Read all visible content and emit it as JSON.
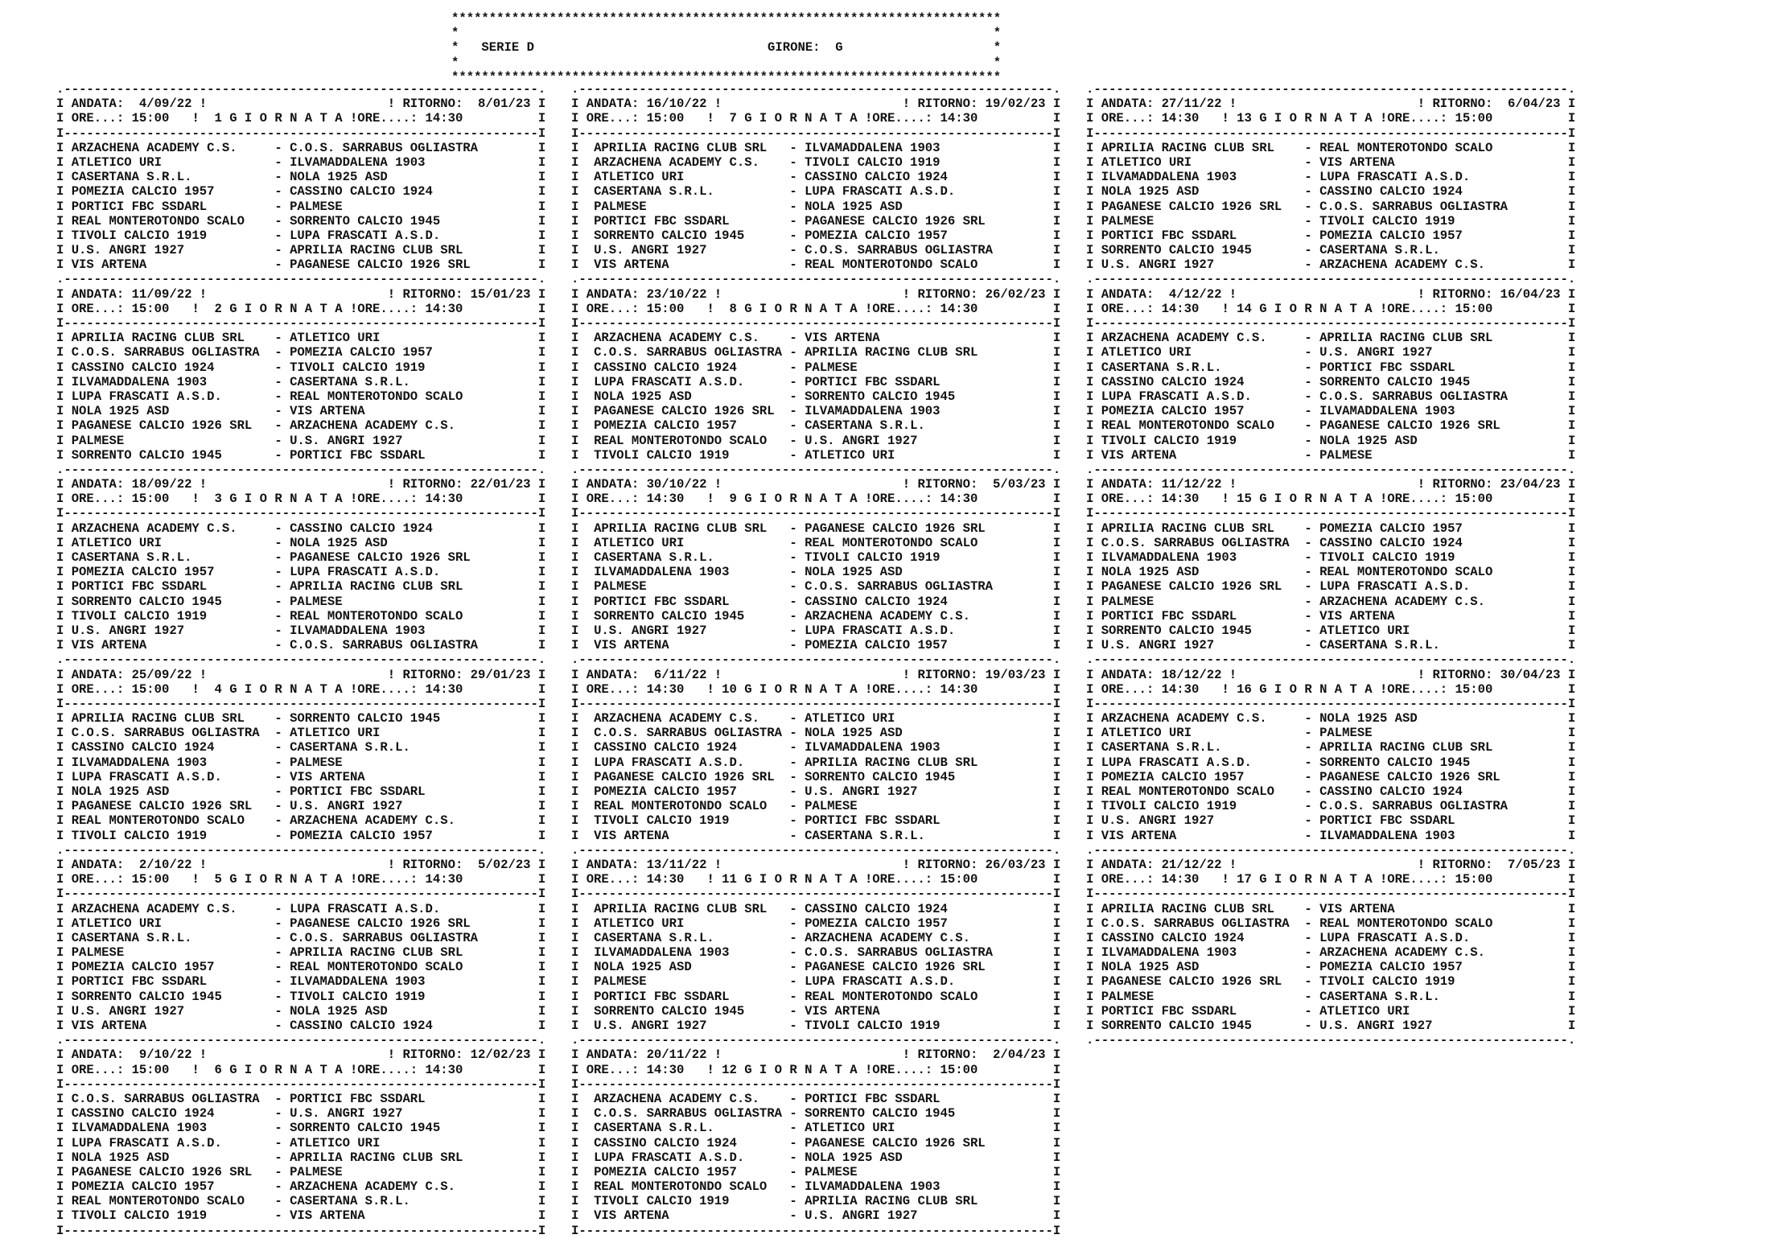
{
  "header": {
    "league": "SERIE D",
    "girone_label": "GIRONE:",
    "girone": "G"
  },
  "labels": {
    "andata": "ANDATA:",
    "ritorno": "RITORNO:",
    "ore_andata": "ORE...:",
    "ore_ritorno": "ORE....:",
    "giornata": "G I O R N A T A"
  },
  "rounds": [
    {
      "n": "1",
      "andata": "4/09/22",
      "ritorno": "8/01/23",
      "ore_andata": "15:00",
      "ore_ritorno": "14:30",
      "matches": [
        [
          "ARZACHENA ACADEMY C.S.",
          "C.O.S. SARRABUS OGLIASTRA"
        ],
        [
          "ATLETICO URI",
          "ILVAMADDALENA 1903"
        ],
        [
          "CASERTANA S.R.L.",
          "NOLA 1925 ASD"
        ],
        [
          "POMEZIA CALCIO 1957",
          "CASSINO CALCIO 1924"
        ],
        [
          "PORTICI FBC SSDARL",
          "PALMESE"
        ],
        [
          "REAL MONTEROTONDO SCALO",
          "SORRENTO CALCIO 1945"
        ],
        [
          "TIVOLI CALCIO 1919",
          "LUPA FRASCATI A.S.D."
        ],
        [
          "U.S. ANGRI 1927",
          "APRILIA RACING CLUB SRL"
        ],
        [
          "VIS ARTENA",
          "PAGANESE CALCIO 1926 SRL"
        ]
      ]
    },
    {
      "n": "2",
      "andata": "11/09/22",
      "ritorno": "15/01/23",
      "ore_andata": "15:00",
      "ore_ritorno": "14:30",
      "matches": [
        [
          "APRILIA RACING CLUB SRL",
          "ATLETICO URI"
        ],
        [
          "C.O.S. SARRABUS OGLIASTRA",
          "POMEZIA CALCIO 1957"
        ],
        [
          "CASSINO CALCIO 1924",
          "TIVOLI CALCIO 1919"
        ],
        [
          "ILVAMADDALENA 1903",
          "CASERTANA S.R.L."
        ],
        [
          "LUPA FRASCATI A.S.D.",
          "REAL MONTEROTONDO SCALO"
        ],
        [
          "NOLA 1925 ASD",
          "VIS ARTENA"
        ],
        [
          "PAGANESE CALCIO 1926 SRL",
          "ARZACHENA ACADEMY C.S."
        ],
        [
          "PALMESE",
          "U.S. ANGRI 1927"
        ],
        [
          "SORRENTO CALCIO 1945",
          "PORTICI FBC SSDARL"
        ]
      ]
    },
    {
      "n": "3",
      "andata": "18/09/22",
      "ritorno": "22/01/23",
      "ore_andata": "15:00",
      "ore_ritorno": "14:30",
      "matches": [
        [
          "ARZACHENA ACADEMY C.S.",
          "CASSINO CALCIO 1924"
        ],
        [
          "ATLETICO URI",
          "NOLA 1925 ASD"
        ],
        [
          "CASERTANA S.R.L.",
          "PAGANESE CALCIO 1926 SRL"
        ],
        [
          "POMEZIA CALCIO 1957",
          "LUPA FRASCATI A.S.D."
        ],
        [
          "PORTICI FBC SSDARL",
          "APRILIA RACING CLUB SRL"
        ],
        [
          "SORRENTO CALCIO 1945",
          "PALMESE"
        ],
        [
          "TIVOLI CALCIO 1919",
          "REAL MONTEROTONDO SCALO"
        ],
        [
          "U.S. ANGRI 1927",
          "ILVAMADDALENA 1903"
        ],
        [
          "VIS ARTENA",
          "C.O.S. SARRABUS OGLIASTRA"
        ]
      ]
    },
    {
      "n": "4",
      "andata": "25/09/22",
      "ritorno": "29/01/23",
      "ore_andata": "15:00",
      "ore_ritorno": "14:30",
      "matches": [
        [
          "APRILIA RACING CLUB SRL",
          "SORRENTO CALCIO 1945"
        ],
        [
          "C.O.S. SARRABUS OGLIASTRA",
          "ATLETICO URI"
        ],
        [
          "CASSINO CALCIO 1924",
          "CASERTANA S.R.L."
        ],
        [
          "ILVAMADDALENA 1903",
          "PALMESE"
        ],
        [
          "LUPA FRASCATI A.S.D.",
          "VIS ARTENA"
        ],
        [
          "NOLA 1925 ASD",
          "PORTICI FBC SSDARL"
        ],
        [
          "PAGANESE CALCIO 1926 SRL",
          "U.S. ANGRI 1927"
        ],
        [
          "REAL MONTEROTONDO SCALO",
          "ARZACHENA ACADEMY C.S."
        ],
        [
          "TIVOLI CALCIO 1919",
          "POMEZIA CALCIO 1957"
        ]
      ]
    },
    {
      "n": "5",
      "andata": "2/10/22",
      "ritorno": "5/02/23",
      "ore_andata": "15:00",
      "ore_ritorno": "14:30",
      "matches": [
        [
          "ARZACHENA ACADEMY C.S.",
          "LUPA FRASCATI A.S.D."
        ],
        [
          "ATLETICO URI",
          "PAGANESE CALCIO 1926 SRL"
        ],
        [
          "CASERTANA S.R.L.",
          "C.O.S. SARRABUS OGLIASTRA"
        ],
        [
          "PALMESE",
          "APRILIA RACING CLUB SRL"
        ],
        [
          "POMEZIA CALCIO 1957",
          "REAL MONTEROTONDO SCALO"
        ],
        [
          "PORTICI FBC SSDARL",
          "ILVAMADDALENA 1903"
        ],
        [
          "SORRENTO CALCIO 1945",
          "TIVOLI CALCIO 1919"
        ],
        [
          "U.S. ANGRI 1927",
          "NOLA 1925 ASD"
        ],
        [
          "VIS ARTENA",
          "CASSINO CALCIO 1924"
        ]
      ]
    },
    {
      "n": "6",
      "andata": "9/10/22",
      "ritorno": "12/02/23",
      "ore_andata": "15:00",
      "ore_ritorno": "14:30",
      "matches": [
        [
          "C.O.S. SARRABUS OGLIASTRA",
          "PORTICI FBC SSDARL"
        ],
        [
          "CASSINO CALCIO 1924",
          "U.S. ANGRI 1927"
        ],
        [
          "ILVAMADDALENA 1903",
          "SORRENTO CALCIO 1945"
        ],
        [
          "LUPA FRASCATI A.S.D.",
          "ATLETICO URI"
        ],
        [
          "NOLA 1925 ASD",
          "APRILIA RACING CLUB SRL"
        ],
        [
          "PAGANESE CALCIO 1926 SRL",
          "PALMESE"
        ],
        [
          "POMEZIA CALCIO 1957",
          "ARZACHENA ACADEMY C.S."
        ],
        [
          "REAL MONTEROTONDO SCALO",
          "CASERTANA S.R.L."
        ],
        [
          "TIVOLI CALCIO 1919",
          "VIS ARTENA"
        ]
      ]
    },
    {
      "n": "7",
      "andata": "16/10/22",
      "ritorno": "19/02/23",
      "ore_andata": "15:00",
      "ore_ritorno": "14:30",
      "matches": [
        [
          "APRILIA RACING CLUB SRL",
          "ILVAMADDALENA 1903"
        ],
        [
          "ARZACHENA ACADEMY C.S.",
          "TIVOLI CALCIO 1919"
        ],
        [
          "ATLETICO URI",
          "CASSINO CALCIO 1924"
        ],
        [
          "CASERTANA S.R.L.",
          "LUPA FRASCATI A.S.D."
        ],
        [
          "PALMESE",
          "NOLA 1925 ASD"
        ],
        [
          "PORTICI FBC SSDARL",
          "PAGANESE CALCIO 1926 SRL"
        ],
        [
          "SORRENTO CALCIO 1945",
          "POMEZIA CALCIO 1957"
        ],
        [
          "U.S. ANGRI 1927",
          "C.O.S. SARRABUS OGLIASTRA"
        ],
        [
          "VIS ARTENA",
          "REAL MONTEROTONDO SCALO"
        ]
      ]
    },
    {
      "n": "8",
      "andata": "23/10/22",
      "ritorno": "26/02/23",
      "ore_andata": "15:00",
      "ore_ritorno": "14:30",
      "matches": [
        [
          "ARZACHENA ACADEMY C.S.",
          "VIS ARTENA"
        ],
        [
          "C.O.S. SARRABUS OGLIASTRA",
          "APRILIA RACING CLUB SRL"
        ],
        [
          "CASSINO CALCIO 1924",
          "PALMESE"
        ],
        [
          "LUPA FRASCATI A.S.D.",
          "PORTICI FBC SSDARL"
        ],
        [
          "NOLA 1925 ASD",
          "SORRENTO CALCIO 1945"
        ],
        [
          "PAGANESE CALCIO 1926 SRL",
          "ILVAMADDALENA 1903"
        ],
        [
          "POMEZIA CALCIO 1957",
          "CASERTANA S.R.L."
        ],
        [
          "REAL MONTEROTONDO SCALO",
          "U.S. ANGRI 1927"
        ],
        [
          "TIVOLI CALCIO 1919",
          "ATLETICO URI"
        ]
      ]
    },
    {
      "n": "9",
      "andata": "30/10/22",
      "ritorno": "5/03/23",
      "ore_andata": "14:30",
      "ore_ritorno": "14:30",
      "matches": [
        [
          "APRILIA RACING CLUB SRL",
          "PAGANESE CALCIO 1926 SRL"
        ],
        [
          "ATLETICO URI",
          "REAL MONTEROTONDO SCALO"
        ],
        [
          "CASERTANA S.R.L.",
          "TIVOLI CALCIO 1919"
        ],
        [
          "ILVAMADDALENA 1903",
          "NOLA 1925 ASD"
        ],
        [
          "PALMESE",
          "C.O.S. SARRABUS OGLIASTRA"
        ],
        [
          "PORTICI FBC SSDARL",
          "CASSINO CALCIO 1924"
        ],
        [
          "SORRENTO CALCIO 1945",
          "ARZACHENA ACADEMY C.S."
        ],
        [
          "U.S. ANGRI 1927",
          "LUPA FRASCATI A.S.D."
        ],
        [
          "VIS ARTENA",
          "POMEZIA CALCIO 1957"
        ]
      ]
    },
    {
      "n": "10",
      "andata": "6/11/22",
      "ritorno": "19/03/23",
      "ore_andata": "14:30",
      "ore_ritorno": "14:30",
      "matches": [
        [
          "ARZACHENA ACADEMY C.S.",
          "ATLETICO URI"
        ],
        [
          "C.O.S. SARRABUS OGLIASTRA",
          "NOLA 1925 ASD"
        ],
        [
          "CASSINO CALCIO 1924",
          "ILVAMADDALENA 1903"
        ],
        [
          "LUPA FRASCATI A.S.D.",
          "APRILIA RACING CLUB SRL"
        ],
        [
          "PAGANESE CALCIO 1926 SRL",
          "SORRENTO CALCIO 1945"
        ],
        [
          "POMEZIA CALCIO 1957",
          "U.S. ANGRI 1927"
        ],
        [
          "REAL MONTEROTONDO SCALO",
          "PALMESE"
        ],
        [
          "TIVOLI CALCIO 1919",
          "PORTICI FBC SSDARL"
        ],
        [
          "VIS ARTENA",
          "CASERTANA S.R.L."
        ]
      ]
    },
    {
      "n": "11",
      "andata": "13/11/22",
      "ritorno": "26/03/23",
      "ore_andata": "14:30",
      "ore_ritorno": "15:00",
      "matches": [
        [
          "APRILIA RACING CLUB SRL",
          "CASSINO CALCIO 1924"
        ],
        [
          "ATLETICO URI",
          "POMEZIA CALCIO 1957"
        ],
        [
          "CASERTANA S.R.L.",
          "ARZACHENA ACADEMY C.S."
        ],
        [
          "ILVAMADDALENA 1903",
          "C.O.S. SARRABUS OGLIASTRA"
        ],
        [
          "NOLA 1925 ASD",
          "PAGANESE CALCIO 1926 SRL"
        ],
        [
          "PALMESE",
          "LUPA FRASCATI A.S.D."
        ],
        [
          "PORTICI FBC SSDARL",
          "REAL MONTEROTONDO SCALO"
        ],
        [
          "SORRENTO CALCIO 1945",
          "VIS ARTENA"
        ],
        [
          "U.S. ANGRI 1927",
          "TIVOLI CALCIO 1919"
        ]
      ]
    },
    {
      "n": "12",
      "andata": "20/11/22",
      "ritorno": "2/04/23",
      "ore_andata": "14:30",
      "ore_ritorno": "15:00",
      "matches": [
        [
          "ARZACHENA ACADEMY C.S.",
          "PORTICI FBC SSDARL"
        ],
        [
          "C.O.S. SARRABUS OGLIASTRA",
          "SORRENTO CALCIO 1945"
        ],
        [
          "CASERTANA S.R.L.",
          "ATLETICO URI"
        ],
        [
          "CASSINO CALCIO 1924",
          "PAGANESE CALCIO 1926 SRL"
        ],
        [
          "LUPA FRASCATI A.S.D.",
          "NOLA 1925 ASD"
        ],
        [
          "POMEZIA CALCIO 1957",
          "PALMESE"
        ],
        [
          "REAL MONTEROTONDO SCALO",
          "ILVAMADDALENA 1903"
        ],
        [
          "TIVOLI CALCIO 1919",
          "APRILIA RACING CLUB SRL"
        ],
        [
          "VIS ARTENA",
          "U.S. ANGRI 1927"
        ]
      ]
    },
    {
      "n": "13",
      "andata": "27/11/22",
      "ritorno": "6/04/23",
      "ore_andata": "14:30",
      "ore_ritorno": "15:00",
      "matches": [
        [
          "APRILIA RACING CLUB SRL",
          "REAL MONTEROTONDO SCALO"
        ],
        [
          "ATLETICO URI",
          "VIS ARTENA"
        ],
        [
          "ILVAMADDALENA 1903",
          "LUPA FRASCATI A.S.D."
        ],
        [
          "NOLA 1925 ASD",
          "CASSINO CALCIO 1924"
        ],
        [
          "PAGANESE CALCIO 1926 SRL",
          "C.O.S. SARRABUS OGLIASTRA"
        ],
        [
          "PALMESE",
          "TIVOLI CALCIO 1919"
        ],
        [
          "PORTICI FBC SSDARL",
          "POMEZIA CALCIO 1957"
        ],
        [
          "SORRENTO CALCIO 1945",
          "CASERTANA S.R.L."
        ],
        [
          "U.S. ANGRI 1927",
          "ARZACHENA ACADEMY C.S."
        ]
      ]
    },
    {
      "n": "14",
      "andata": "4/12/22",
      "ritorno": "16/04/23",
      "ore_andata": "14:30",
      "ore_ritorno": "15:00",
      "matches": [
        [
          "ARZACHENA ACADEMY C.S.",
          "APRILIA RACING CLUB SRL"
        ],
        [
          "ATLETICO URI",
          "U.S. ANGRI 1927"
        ],
        [
          "CASERTANA S.R.L.",
          "PORTICI FBC SSDARL"
        ],
        [
          "CASSINO CALCIO 1924",
          "SORRENTO CALCIO 1945"
        ],
        [
          "LUPA FRASCATI A.S.D.",
          "C.O.S. SARRABUS OGLIASTRA"
        ],
        [
          "POMEZIA CALCIO 1957",
          "ILVAMADDALENA 1903"
        ],
        [
          "REAL MONTEROTONDO SCALO",
          "PAGANESE CALCIO 1926 SRL"
        ],
        [
          "TIVOLI CALCIO 1919",
          "NOLA 1925 ASD"
        ],
        [
          "VIS ARTENA",
          "PALMESE"
        ]
      ]
    },
    {
      "n": "15",
      "andata": "11/12/22",
      "ritorno": "23/04/23",
      "ore_andata": "14:30",
      "ore_ritorno": "15:00",
      "matches": [
        [
          "APRILIA RACING CLUB SRL",
          "POMEZIA CALCIO 1957"
        ],
        [
          "C.O.S. SARRABUS OGLIASTRA",
          "CASSINO CALCIO 1924"
        ],
        [
          "ILVAMADDALENA 1903",
          "TIVOLI CALCIO 1919"
        ],
        [
          "NOLA 1925 ASD",
          "REAL MONTEROTONDO SCALO"
        ],
        [
          "PAGANESE CALCIO 1926 SRL",
          "LUPA FRASCATI A.S.D."
        ],
        [
          "PALMESE",
          "ARZACHENA ACADEMY C.S."
        ],
        [
          "PORTICI FBC SSDARL",
          "VIS ARTENA"
        ],
        [
          "SORRENTO CALCIO 1945",
          "ATLETICO URI"
        ],
        [
          "U.S. ANGRI 1927",
          "CASERTANA S.R.L."
        ]
      ]
    },
    {
      "n": "16",
      "andata": "18/12/22",
      "ritorno": "30/04/23",
      "ore_andata": "14:30",
      "ore_ritorno": "15:00",
      "matches": [
        [
          "ARZACHENA ACADEMY C.S.",
          "NOLA 1925 ASD"
        ],
        [
          "ATLETICO URI",
          "PALMESE"
        ],
        [
          "CASERTANA S.R.L.",
          "APRILIA RACING CLUB SRL"
        ],
        [
          "LUPA FRASCATI A.S.D.",
          "SORRENTO CALCIO 1945"
        ],
        [
          "POMEZIA CALCIO 1957",
          "PAGANESE CALCIO 1926 SRL"
        ],
        [
          "REAL MONTEROTONDO SCALO",
          "CASSINO CALCIO 1924"
        ],
        [
          "TIVOLI CALCIO 1919",
          "C.O.S. SARRABUS OGLIASTRA"
        ],
        [
          "U.S. ANGRI 1927",
          "PORTICI FBC SSDARL"
        ],
        [
          "VIS ARTENA",
          "ILVAMADDALENA 1903"
        ]
      ]
    },
    {
      "n": "17",
      "andata": "21/12/22",
      "ritorno": "7/05/23",
      "ore_andata": "14:30",
      "ore_ritorno": "15:00",
      "matches": [
        [
          "APRILIA RACING CLUB SRL",
          "VIS ARTENA"
        ],
        [
          "C.O.S. SARRABUS OGLIASTRA",
          "REAL MONTEROTONDO SCALO"
        ],
        [
          "CASSINO CALCIO 1924",
          "LUPA FRASCATI A.S.D."
        ],
        [
          "ILVAMADDALENA 1903",
          "ARZACHENA ACADEMY C.S."
        ],
        [
          "NOLA 1925 ASD",
          "POMEZIA CALCIO 1957"
        ],
        [
          "PAGANESE CALCIO 1926 SRL",
          "TIVOLI CALCIO 1919"
        ],
        [
          "PALMESE",
          "CASERTANA S.R.L."
        ],
        [
          "PORTICI FBC SSDARL",
          "ATLETICO URI"
        ],
        [
          "SORRENTO CALCIO 1945",
          "U.S. ANGRI 1927"
        ]
      ]
    }
  ]
}
